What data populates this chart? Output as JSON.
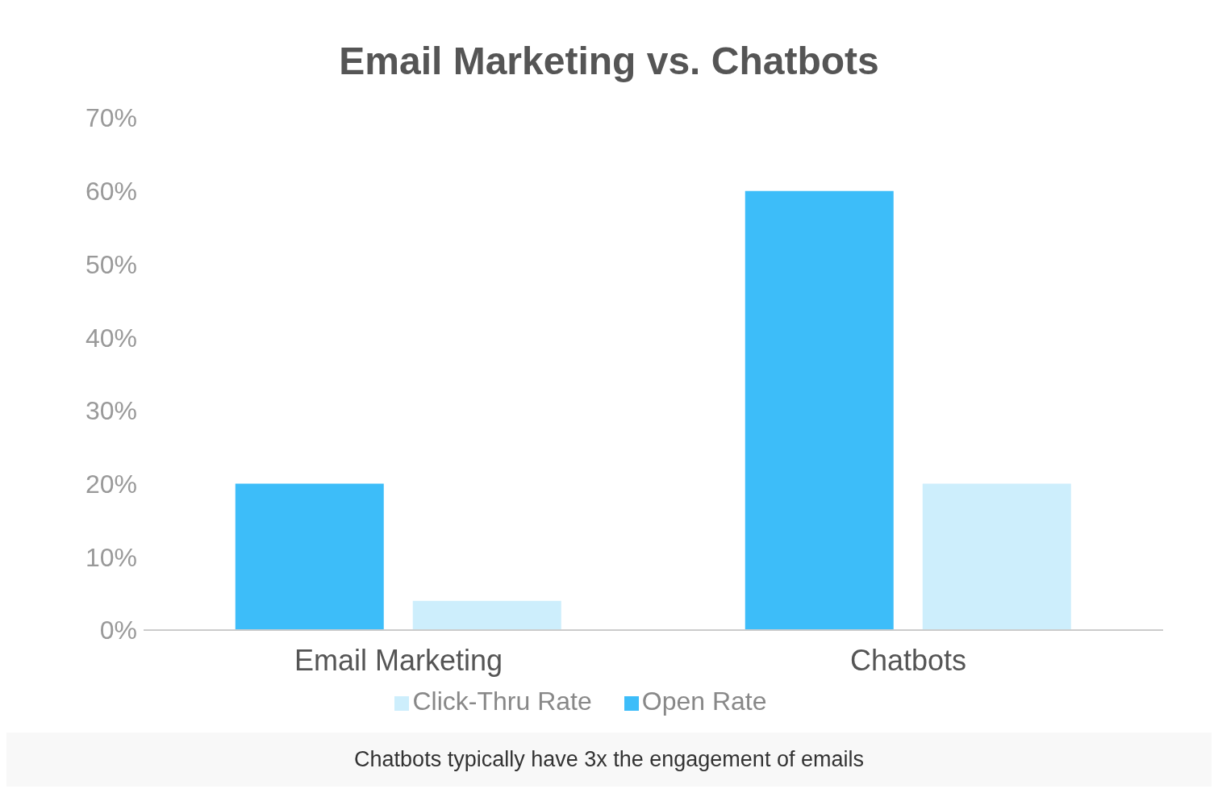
{
  "chart_data": {
    "type": "bar",
    "title": "Email Marketing vs. Chatbots",
    "categories": [
      "Email Marketing",
      "Chatbots"
    ],
    "series": [
      {
        "name": "Open Rate",
        "color": "#3dbdf9",
        "values": [
          20,
          60
        ]
      },
      {
        "name": "Click-Thru Rate",
        "color": "#cdeefc",
        "values": [
          4,
          20
        ]
      }
    ],
    "ylim": [
      0,
      70
    ],
    "yticks": [
      {
        "value": 0,
        "label": "0%"
      },
      {
        "value": 10,
        "label": "10%"
      },
      {
        "value": 20,
        "label": "20%"
      },
      {
        "value": 30,
        "label": "30%"
      },
      {
        "value": 40,
        "label": "40%"
      },
      {
        "value": 50,
        "label": "50%"
      },
      {
        "value": 60,
        "label": "60%"
      },
      {
        "value": 70,
        "label": "70%"
      }
    ],
    "grid": false,
    "legend": "bottom",
    "annotations": [
      "Chatbots typically have 3x the engagement of emails"
    ]
  }
}
